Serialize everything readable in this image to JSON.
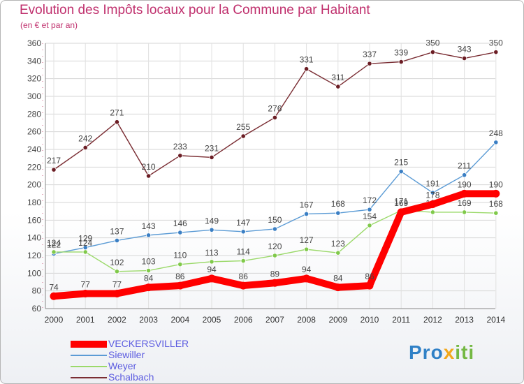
{
  "header": {
    "title": "Evolution des Impôts locaux pour la Commune par Habitant",
    "subtitle": "(en € et par an)"
  },
  "brand": {
    "parts": [
      "Pro",
      "x",
      "iti"
    ],
    "colors": [
      "#2f80c6",
      "#f2a81c",
      "#74b843"
    ]
  },
  "chart_data": {
    "type": "line",
    "title": "Evolution des Impôts locaux pour la Commune par Habitant",
    "subtitle": "(en € et par an)",
    "xlabel": "",
    "ylabel": "",
    "ylim": [
      60,
      360
    ],
    "yticks": [
      "60",
      "80",
      "100",
      "120",
      "140",
      "160",
      "180",
      "200",
      "220",
      "240",
      "260",
      "280",
      "300",
      "320",
      "340",
      "360"
    ],
    "x": [
      "2000",
      "2001",
      "2002",
      "2003",
      "2004",
      "2005",
      "2006",
      "2007",
      "2008",
      "2009",
      "2010",
      "2011",
      "2012",
      "2013",
      "2014"
    ],
    "grid": true,
    "series": [
      {
        "name": "Schalbach",
        "color": "#7a2d33",
        "marker_color": "#6b1d24",
        "values": [
          217,
          242,
          271,
          210,
          233,
          231,
          255,
          276,
          331,
          311,
          337,
          339,
          350,
          343,
          350
        ],
        "labels": [
          "217",
          "242",
          "271",
          "210",
          "233",
          "231",
          "255",
          "276",
          "331",
          "311",
          "337",
          "339",
          "350",
          "343",
          "350"
        ]
      },
      {
        "name": "Siewiller",
        "color": "#5b9bd5",
        "marker_color": "#3b7fc4",
        "values": [
          122,
          129,
          137,
          143,
          146,
          149,
          147,
          150,
          167,
          168,
          172,
          215,
          191,
          211,
          248
        ],
        "labels": [
          "122",
          "129",
          "137",
          "143",
          "146",
          "149",
          "147",
          "150",
          "167",
          "168",
          "172",
          "215",
          "191",
          "211",
          "248"
        ]
      },
      {
        "name": "Weyer",
        "color": "#9bd96a",
        "marker_color": "#80c94a",
        "values": [
          124,
          124,
          102,
          103,
          110,
          113,
          114,
          120,
          127,
          123,
          154,
          171,
          169,
          169,
          168
        ],
        "labels": [
          "124",
          "124",
          "102",
          "103",
          "110",
          "113",
          "114",
          "120",
          "127",
          "123",
          "154",
          "171",
          "169",
          "169",
          "168"
        ]
      },
      {
        "name": "VECKERSVILLER",
        "color": "#ff0000",
        "marker_color": "#ff0000",
        "values": [
          74,
          77,
          77,
          84,
          86,
          94,
          86,
          89,
          94,
          84,
          86,
          169,
          178,
          190,
          190
        ],
        "labels": [
          "74",
          "77",
          "77",
          "84",
          "86",
          "94",
          "86",
          "89",
          "94",
          "84",
          "86",
          "169",
          "178",
          "190",
          "190"
        ]
      }
    ],
    "legend": [
      {
        "name": "VECKERSVILLER",
        "color": "#ff0000"
      },
      {
        "name": "Siewiller",
        "color": "#5b9bd5"
      },
      {
        "name": "Weyer",
        "color": "#9bd96a"
      },
      {
        "name": "Schalbach",
        "color": "#7a2d33"
      }
    ],
    "legend_position": "bottom-left"
  }
}
